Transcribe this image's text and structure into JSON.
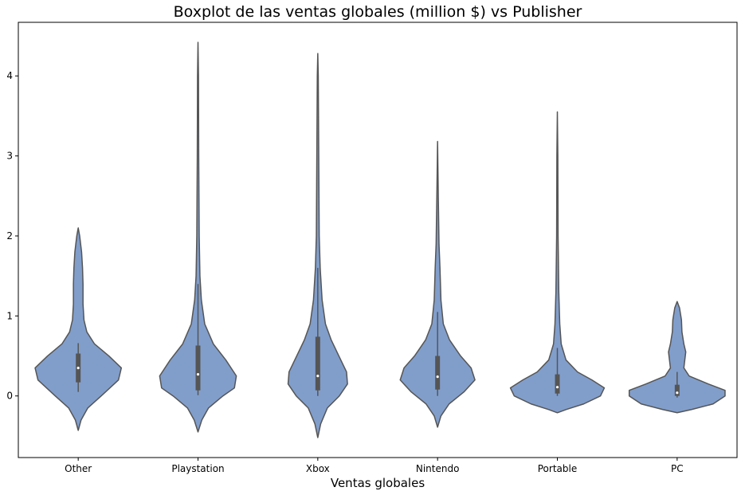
{
  "chart_data": {
    "type": "violin",
    "title": "Boxplot de las ventas globales (million $) vs Publisher",
    "xlabel": "Ventas globales",
    "ylabel": "",
    "ylim": [
      -0.77,
      4.67
    ],
    "yticks": [
      0,
      1,
      2,
      3,
      4
    ],
    "grid": false,
    "legend": "none",
    "color": "#819ecb",
    "outline_color": "#555555",
    "categories": [
      "Other",
      "Playstation",
      "Xbox",
      "Nintendo",
      "Portable",
      "PC"
    ],
    "series": [
      {
        "category": "Other",
        "min": -0.43,
        "max": 2.1,
        "q1": 0.17,
        "median": 0.35,
        "q3": 0.53,
        "whisker_low": 0.05,
        "whisker_high": 0.66,
        "profile": [
          [
            -0.43,
            0.0
          ],
          [
            -0.3,
            0.06
          ],
          [
            -0.15,
            0.2
          ],
          [
            0.0,
            0.48
          ],
          [
            0.2,
            0.84
          ],
          [
            0.35,
            0.9
          ],
          [
            0.5,
            0.64
          ],
          [
            0.65,
            0.34
          ],
          [
            0.8,
            0.18
          ],
          [
            0.95,
            0.12
          ],
          [
            1.15,
            0.1
          ],
          [
            1.4,
            0.1
          ],
          [
            1.6,
            0.09
          ],
          [
            1.8,
            0.07
          ],
          [
            2.0,
            0.03
          ],
          [
            2.1,
            0.0
          ]
        ]
      },
      {
        "category": "Playstation",
        "min": -0.45,
        "max": 4.42,
        "q1": 0.07,
        "median": 0.27,
        "q3": 0.63,
        "whisker_low": 0.01,
        "whisker_high": 1.4,
        "profile": [
          [
            -0.45,
            0.0
          ],
          [
            -0.3,
            0.08
          ],
          [
            -0.15,
            0.22
          ],
          [
            0.0,
            0.52
          ],
          [
            0.1,
            0.76
          ],
          [
            0.25,
            0.8
          ],
          [
            0.45,
            0.58
          ],
          [
            0.65,
            0.32
          ],
          [
            0.9,
            0.14
          ],
          [
            1.2,
            0.07
          ],
          [
            1.5,
            0.04
          ],
          [
            2.0,
            0.025
          ],
          [
            3.0,
            0.015
          ],
          [
            4.0,
            0.01
          ],
          [
            4.42,
            0.0
          ]
        ]
      },
      {
        "category": "Xbox",
        "min": -0.52,
        "max": 4.28,
        "q1": 0.07,
        "median": 0.25,
        "q3": 0.74,
        "whisker_low": 0.0,
        "whisker_high": 1.6,
        "profile": [
          [
            -0.52,
            0.0
          ],
          [
            -0.35,
            0.06
          ],
          [
            -0.15,
            0.2
          ],
          [
            0.0,
            0.45
          ],
          [
            0.15,
            0.62
          ],
          [
            0.3,
            0.6
          ],
          [
            0.5,
            0.44
          ],
          [
            0.7,
            0.28
          ],
          [
            0.9,
            0.16
          ],
          [
            1.2,
            0.09
          ],
          [
            1.6,
            0.05
          ],
          [
            2.0,
            0.03
          ],
          [
            3.0,
            0.02
          ],
          [
            4.0,
            0.01
          ],
          [
            4.28,
            0.0
          ]
        ]
      },
      {
        "category": "Nintendo",
        "min": -0.39,
        "max": 3.18,
        "q1": 0.08,
        "median": 0.24,
        "q3": 0.5,
        "whisker_low": 0.0,
        "whisker_high": 1.05,
        "profile": [
          [
            -0.39,
            0.0
          ],
          [
            -0.25,
            0.07
          ],
          [
            -0.1,
            0.24
          ],
          [
            0.05,
            0.55
          ],
          [
            0.2,
            0.78
          ],
          [
            0.35,
            0.7
          ],
          [
            0.5,
            0.48
          ],
          [
            0.7,
            0.25
          ],
          [
            0.9,
            0.12
          ],
          [
            1.2,
            0.07
          ],
          [
            1.6,
            0.05
          ],
          [
            1.9,
            0.03
          ],
          [
            2.5,
            0.015
          ],
          [
            3.18,
            0.0
          ]
        ]
      },
      {
        "category": "Portable",
        "min": -0.21,
        "max": 3.55,
        "q1": 0.03,
        "median": 0.11,
        "q3": 0.27,
        "whisker_low": 0.0,
        "whisker_high": 0.6,
        "profile": [
          [
            -0.21,
            0.0
          ],
          [
            -0.17,
            0.18
          ],
          [
            -0.1,
            0.55
          ],
          [
            0.0,
            0.9
          ],
          [
            0.1,
            0.98
          ],
          [
            0.2,
            0.72
          ],
          [
            0.3,
            0.42
          ],
          [
            0.45,
            0.18
          ],
          [
            0.65,
            0.08
          ],
          [
            0.9,
            0.05
          ],
          [
            1.3,
            0.03
          ],
          [
            2.0,
            0.015
          ],
          [
            3.0,
            0.01
          ],
          [
            3.55,
            0.0
          ]
        ]
      },
      {
        "category": "PC",
        "min": -0.21,
        "max": 1.18,
        "q1": 0.0,
        "median": 0.04,
        "q3": 0.14,
        "whisker_low": -0.02,
        "whisker_high": 0.3,
        "profile": [
          [
            -0.21,
            0.0
          ],
          [
            -0.17,
            0.3
          ],
          [
            -0.1,
            0.75
          ],
          [
            0.0,
            1.0
          ],
          [
            0.07,
            1.0
          ],
          [
            0.15,
            0.65
          ],
          [
            0.25,
            0.25
          ],
          [
            0.35,
            0.14
          ],
          [
            0.45,
            0.16
          ],
          [
            0.55,
            0.18
          ],
          [
            0.65,
            0.14
          ],
          [
            0.8,
            0.1
          ],
          [
            0.95,
            0.09
          ],
          [
            1.1,
            0.05
          ],
          [
            1.18,
            0.0
          ]
        ]
      }
    ]
  }
}
